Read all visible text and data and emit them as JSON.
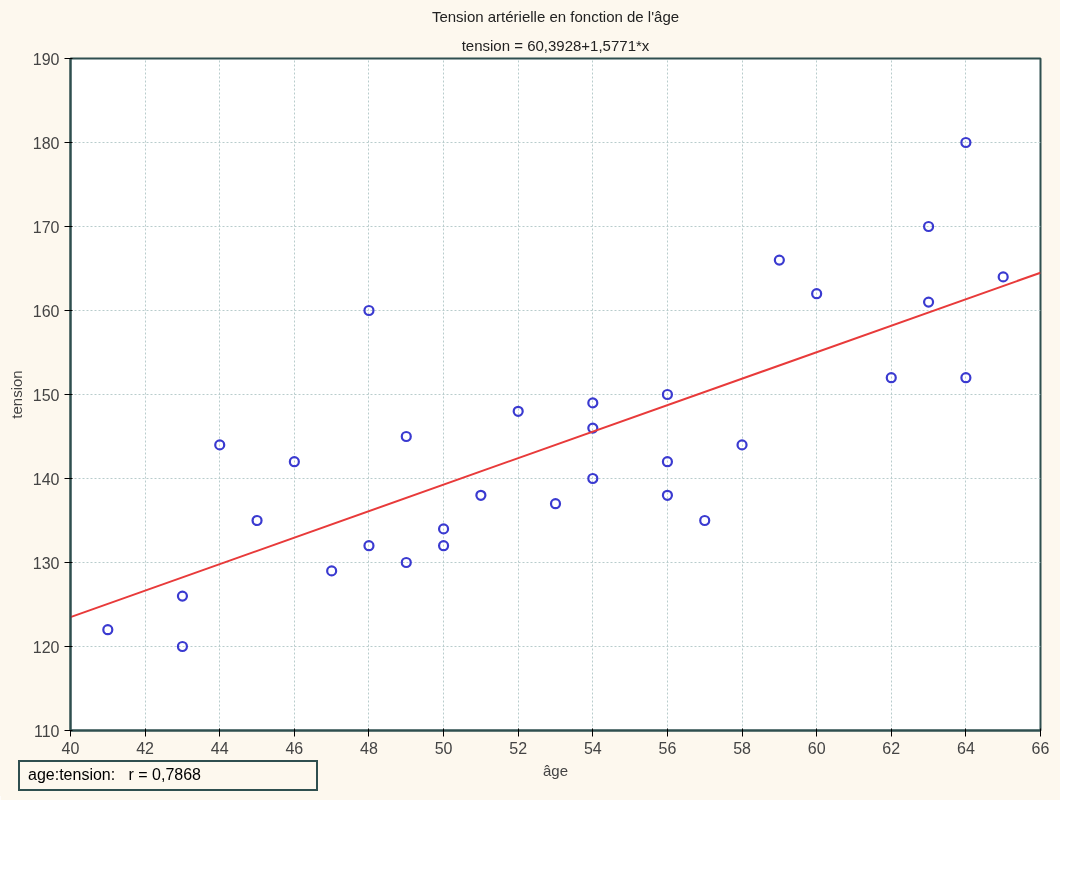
{
  "chart_data": {
    "type": "scatter",
    "title": "Tension artérielle en fonction de l'âge",
    "subtitle": "tension = 60,3928+1,5771*x",
    "xlabel": "âge",
    "ylabel": "tension",
    "annotations": [
      "age:tension:   r = 0,7868"
    ],
    "x": [
      41,
      43,
      43,
      44,
      45,
      46,
      47,
      48,
      48,
      49,
      49,
      50,
      50,
      51,
      52,
      53,
      54,
      54,
      54,
      56,
      56,
      56,
      57,
      58,
      59,
      60,
      62,
      63,
      63,
      64,
      64,
      65
    ],
    "series": [
      {
        "color": "#3a3ad0",
        "marker": "circle",
        "values": [
          122,
          126,
          120,
          144,
          135,
          142,
          129,
          132,
          160,
          145,
          130,
          134,
          132,
          138,
          148,
          137,
          149,
          146,
          140,
          150,
          142,
          138,
          135,
          144,
          166,
          162,
          152,
          170,
          161,
          180,
          152,
          164
        ]
      },
      {
        "type": "line",
        "color": "#e83a3a",
        "x": [
          40,
          66
        ],
        "values": [
          123.5,
          164.5
        ],
        "line_style": "solid"
      }
    ],
    "xlim": [
      40,
      66
    ],
    "ylim": [
      110,
      190
    ],
    "xticks": [
      40,
      42,
      44,
      46,
      48,
      50,
      52,
      54,
      56,
      58,
      60,
      62,
      64,
      66
    ],
    "yticks": [
      110,
      120,
      130,
      140,
      150,
      160,
      170,
      180,
      190
    ],
    "grid": true
  }
}
